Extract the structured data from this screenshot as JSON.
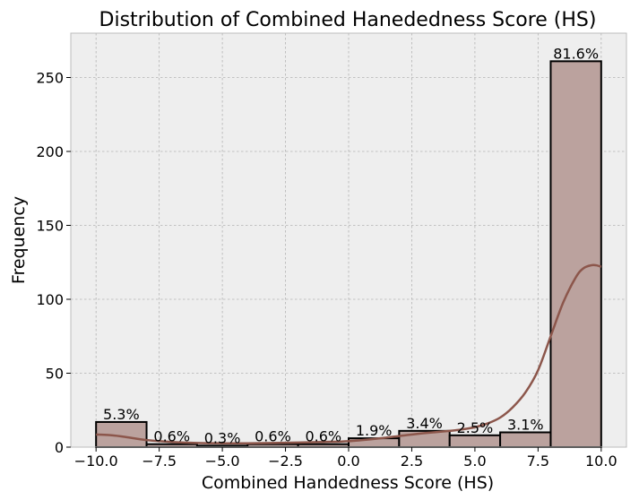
{
  "chart_data": {
    "type": "bar",
    "title": "Distribution of Combined Hanededness Score (HS)",
    "xlabel": "Combined Handedness Score (HS)",
    "ylabel": "Frequency",
    "xlim": [
      -11,
      11
    ],
    "ylim": [
      0,
      280
    ],
    "grid": true,
    "bins": [
      {
        "start": -10,
        "end": -8,
        "value": 17,
        "label": "5.3%"
      },
      {
        "start": -8,
        "end": -6,
        "value": 2,
        "label": "0.6%"
      },
      {
        "start": -6,
        "end": -4,
        "value": 1,
        "label": "0.3%"
      },
      {
        "start": -4,
        "end": -2,
        "value": 2,
        "label": "0.6%"
      },
      {
        "start": -2,
        "end": 0,
        "value": 2,
        "label": "0.6%"
      },
      {
        "start": 0,
        "end": 2,
        "value": 6,
        "label": "1.9%"
      },
      {
        "start": 2,
        "end": 4,
        "value": 11,
        "label": "3.4%"
      },
      {
        "start": 4,
        "end": 6,
        "value": 8,
        "label": "2.5%"
      },
      {
        "start": 6,
        "end": 8,
        "value": 10,
        "label": "3.1%"
      },
      {
        "start": 8,
        "end": 10,
        "value": 261,
        "label": "81.6%"
      }
    ],
    "density_curve": {
      "x": [
        -10,
        -9.5,
        -9,
        -8.5,
        -8,
        -7,
        -6,
        -5,
        -4,
        -3,
        -2,
        -1,
        0,
        1,
        2,
        3,
        4,
        4.5,
        5,
        5.5,
        6,
        6.5,
        7,
        7.5,
        8,
        8.5,
        9,
        9.3,
        9.6,
        9.8,
        10
      ],
      "y": [
        8.5,
        8.2,
        7.3,
        6,
        4.8,
        3.5,
        2.8,
        2.6,
        2.6,
        2.8,
        3.1,
        3.5,
        4,
        5.5,
        7.5,
        9.5,
        11,
        12,
        13.5,
        16,
        20,
        27,
        37,
        52,
        75,
        98,
        115,
        121,
        123,
        123,
        122
      ]
    },
    "x_ticks": [
      -10,
      -7.5,
      -5,
      -2.5,
      0,
      2.5,
      5,
      7.5,
      10
    ],
    "x_tick_labels": [
      "−10.0",
      "−7.5",
      "−5.0",
      "−2.5",
      "0.0",
      "2.5",
      "5.0",
      "7.5",
      "10.0"
    ],
    "y_ticks": [
      0,
      50,
      100,
      150,
      200,
      250
    ],
    "y_tick_labels": [
      "0",
      "50",
      "100",
      "150",
      "200",
      "250"
    ],
    "colors": {
      "background": "#ffffff",
      "plot_background": "#eeeeee",
      "grid": "#b2b2b2",
      "bar_fill": "#bba29e",
      "bar_edge": "#000000",
      "kde_line": "#8c564b",
      "axes_edge": "#bcbcbc"
    }
  }
}
